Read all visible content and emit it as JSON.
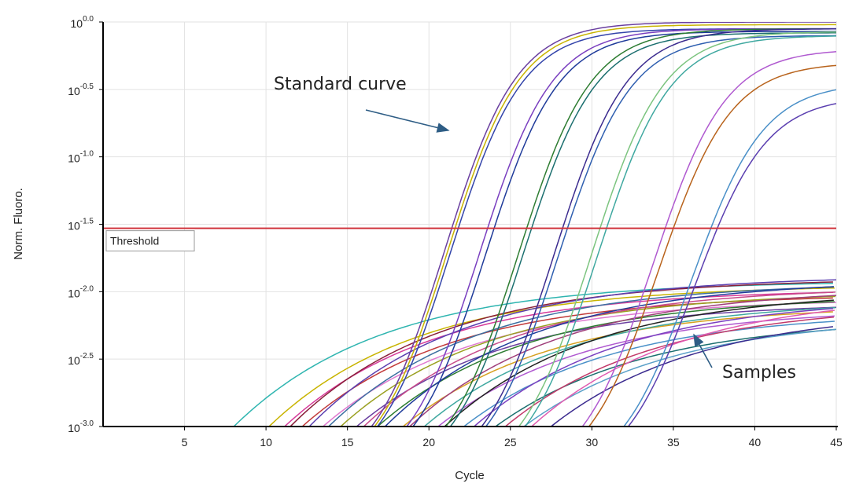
{
  "chart_data": {
    "type": "line",
    "xlabel": "Cycle",
    "ylabel": "Norm. Fluoro.",
    "xlim": [
      0,
      45
    ],
    "ylim": [
      -3.0,
      0.0
    ],
    "yscale": "log",
    "x_ticks": [
      5,
      10,
      15,
      20,
      25,
      30,
      35,
      40,
      45
    ],
    "y_ticks": [
      {
        "exp": 0.0,
        "base": "10",
        "sup": "0.0"
      },
      {
        "exp": -0.5,
        "base": "10",
        "sup": "-0.5"
      },
      {
        "exp": -1.0,
        "base": "10",
        "sup": "-1.0"
      },
      {
        "exp": -1.5,
        "base": "10",
        "sup": "-1.5"
      },
      {
        "exp": -2.0,
        "base": "10",
        "sup": "-2.0"
      },
      {
        "exp": -2.5,
        "base": "10",
        "sup": "-2.5"
      },
      {
        "exp": -3.0,
        "base": "10",
        "sup": "-3.0"
      }
    ],
    "grid": true,
    "threshold": {
      "label": "Threshold",
      "value_exp": -1.53,
      "color": "#d0313a"
    },
    "annotations": [
      {
        "text": "Standard curve"
      },
      {
        "text": "Samples"
      }
    ],
    "standard_curves": [
      {
        "ct": 21.4,
        "plateau": 0.0,
        "color": "#6a3fa0"
      },
      {
        "ct": 21.6,
        "plateau": -0.02,
        "color": "#c8b400"
      },
      {
        "ct": 21.8,
        "plateau": -0.05,
        "color": "#3344aa"
      },
      {
        "ct": 23.6,
        "plateau": -0.05,
        "color": "#7a3fc0"
      },
      {
        "ct": 24.0,
        "plateau": -0.07,
        "color": "#1f3b9a"
      },
      {
        "ct": 26.0,
        "plateau": -0.05,
        "color": "#2e7d32"
      },
      {
        "ct": 26.3,
        "plateau": -0.08,
        "color": "#1b6f6f"
      },
      {
        "ct": 28.2,
        "plateau": -0.05,
        "color": "#3b2b8f"
      },
      {
        "ct": 28.5,
        "plateau": -0.1,
        "color": "#2f5fb0"
      },
      {
        "ct": 30.5,
        "plateau": -0.07,
        "color": "#7cc47f"
      },
      {
        "ct": 30.9,
        "plateau": -0.1,
        "color": "#3fa8a0"
      },
      {
        "ct": 34.5,
        "plateau": -0.2,
        "color": "#b05ad0"
      },
      {
        "ct": 35.0,
        "plateau": -0.3,
        "color": "#b8631c"
      },
      {
        "ct": 37.3,
        "plateau": -0.45,
        "color": "#4a90c8"
      },
      {
        "ct": 37.7,
        "plateau": -0.55,
        "color": "#5b3fb0"
      }
    ],
    "sample_curves": [
      {
        "start": 5.8,
        "plateau": -1.92,
        "color": "#2fb5b0"
      },
      {
        "start": 7.9,
        "plateau": -1.95,
        "color": "#c8b400"
      },
      {
        "start": 8.8,
        "plateau": -1.98,
        "color": "#d63a9a"
      },
      {
        "start": 9.3,
        "plateau": -1.9,
        "color": "#8a1f3a"
      },
      {
        "start": 9.8,
        "plateau": -2.02,
        "color": "#c23a3a"
      },
      {
        "start": 10.5,
        "plateau": -1.88,
        "color": "#5b3fb0"
      },
      {
        "start": 11.0,
        "plateau": -2.05,
        "color": "#e07ad0"
      },
      {
        "start": 11.6,
        "plateau": -1.93,
        "color": "#3b6ea0"
      },
      {
        "start": 12.2,
        "plateau": -2.0,
        "color": "#9aa020"
      },
      {
        "start": 13.0,
        "plateau": -2.08,
        "color": "#6a3fa0"
      },
      {
        "start": 13.7,
        "plateau": -1.96,
        "color": "#c84b8a"
      },
      {
        "start": 14.4,
        "plateau": -2.03,
        "color": "#2e7d32"
      },
      {
        "start": 15.1,
        "plateau": -1.91,
        "color": "#1f3b9a"
      },
      {
        "start": 15.8,
        "plateau": -2.1,
        "color": "#d6a020"
      },
      {
        "start": 16.5,
        "plateau": -1.97,
        "color": "#a03f7a"
      },
      {
        "start": 17.2,
        "plateau": -2.06,
        "color": "#3fa8a0"
      },
      {
        "start": 17.9,
        "plateau": -2.12,
        "color": "#b05ad0"
      },
      {
        "start": 18.6,
        "plateau": -1.99,
        "color": "#222222"
      },
      {
        "start": 19.4,
        "plateau": -2.15,
        "color": "#4a90c8"
      },
      {
        "start": 20.3,
        "plateau": -2.04,
        "color": "#7a3fc0"
      },
      {
        "start": 21.2,
        "plateau": -2.2,
        "color": "#1b6f6f"
      },
      {
        "start": 22.1,
        "plateau": -2.09,
        "color": "#c23a6a"
      },
      {
        "start": 23.0,
        "plateau": -2.18,
        "color": "#5aa0c8"
      },
      {
        "start": 23.9,
        "plateau": -2.01,
        "color": "#e05ab0"
      },
      {
        "start": 24.8,
        "plateau": -2.13,
        "color": "#3b2b8f"
      }
    ]
  }
}
